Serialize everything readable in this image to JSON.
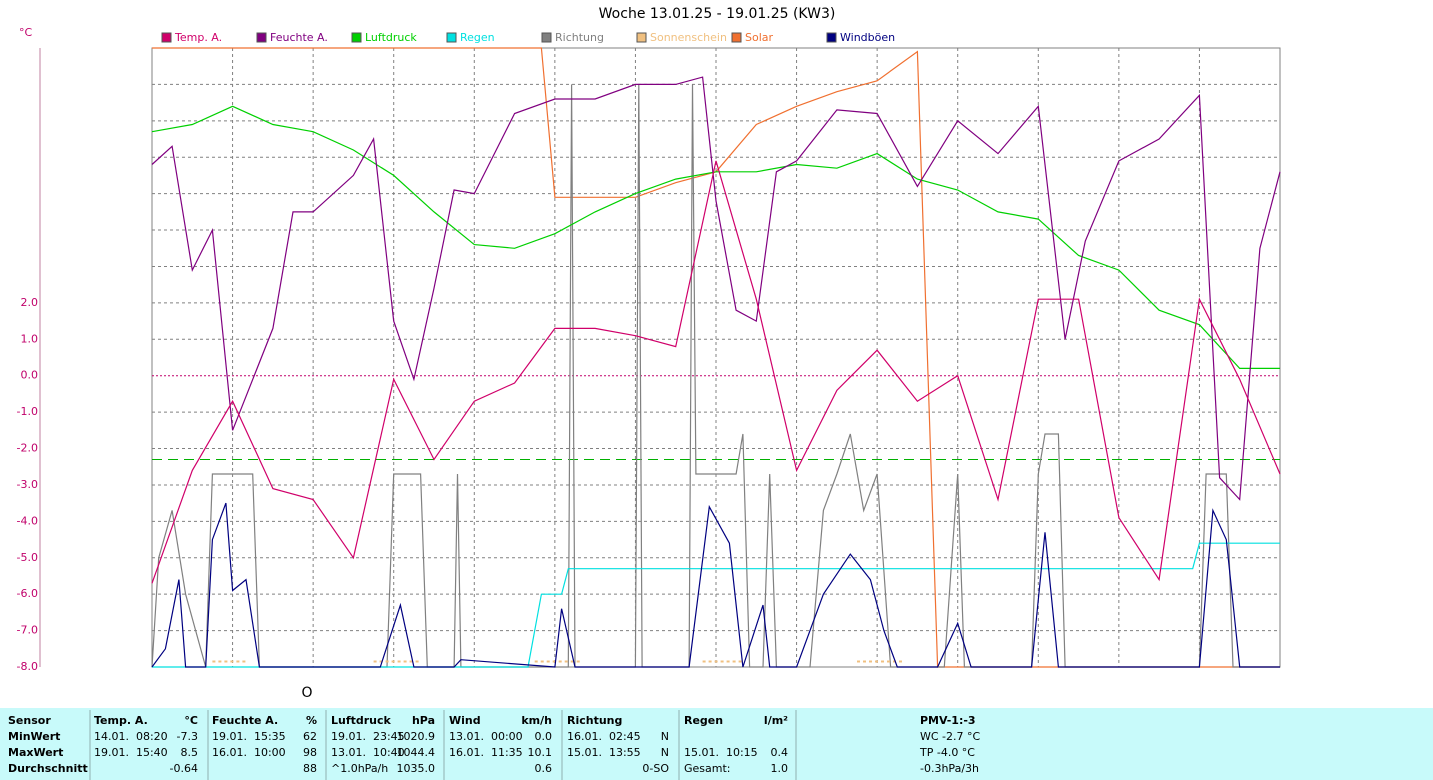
{
  "chart_data": {
    "type": "line",
    "title": "Woche 13.01.25 - 19.01.25 (KW3)",
    "y_unit": "°C",
    "marker_text": "O",
    "xlim": [
      0,
      168
    ],
    "ylim": [
      -8,
      9
    ],
    "xticks": [
      {
        "value": 12,
        "label": null
      },
      {
        "value": 24,
        "label": null
      },
      {
        "value": 36,
        "label": null
      },
      {
        "value": 48,
        "label": null
      },
      {
        "value": 60,
        "label": null
      },
      {
        "value": 72,
        "label": null
      },
      {
        "value": 84,
        "label": null
      },
      {
        "value": 96,
        "label": null
      },
      {
        "value": 108,
        "label": null
      },
      {
        "value": 120,
        "label": null
      },
      {
        "value": 132,
        "label": null
      },
      {
        "value": 144,
        "label": null
      },
      {
        "value": 156,
        "label": null
      }
    ],
    "yticks": [
      {
        "value": -8,
        "label": "-8.0"
      },
      {
        "value": -7,
        "label": "-7.0"
      },
      {
        "value": -6,
        "label": "-6.0"
      },
      {
        "value": -5,
        "label": "-5.0"
      },
      {
        "value": -4,
        "label": "-4.0"
      },
      {
        "value": -3,
        "label": "-3.0"
      },
      {
        "value": -2,
        "label": "-2.0"
      },
      {
        "value": -1,
        "label": "-1.0"
      },
      {
        "value": 0,
        "label": "0.0"
      },
      {
        "value": 1,
        "label": "1.0"
      },
      {
        "value": 2,
        "label": "2.0"
      },
      {
        "value": 3,
        "label": null
      },
      {
        "value": 4,
        "label": null
      },
      {
        "value": 5,
        "label": null
      },
      {
        "value": 6,
        "label": null
      },
      {
        "value": 7,
        "label": null
      },
      {
        "value": 8,
        "label": null
      }
    ],
    "grid": true,
    "zero_line_color": "#c0006a",
    "axis_label_color": "#c0006a",
    "reference_line": {
      "value": -2.3,
      "color": "#00b000"
    },
    "series": [
      {
        "name": "Temp. A.",
        "color": "#d0006a",
        "x": [
          0,
          6,
          12,
          18,
          24,
          30,
          36,
          42,
          48,
          54,
          60,
          66,
          72,
          78,
          84,
          90,
          96,
          102,
          108,
          114,
          120,
          126,
          132,
          138,
          144,
          150,
          156,
          162,
          168
        ],
        "values": [
          -5.7,
          -2.6,
          -0.7,
          -3.1,
          -3.4,
          -5.0,
          -0.1,
          -2.3,
          -0.7,
          -0.2,
          1.3,
          1.3,
          1.1,
          0.8,
          5.9,
          2.1,
          -2.6,
          -0.4,
          0.7,
          -0.7,
          0.0,
          -3.4,
          2.1,
          2.1,
          -3.9,
          -5.6,
          2.1,
          -0.1,
          -2.7
        ]
      },
      {
        "name": "Feuchte A.",
        "color": "#800080",
        "x": [
          0,
          3,
          6,
          9,
          12,
          18,
          21,
          24,
          30,
          33,
          36,
          39,
          42,
          45,
          48,
          54,
          60,
          66,
          72,
          78,
          82,
          84,
          87,
          90,
          93,
          96,
          102,
          108,
          114,
          120,
          126,
          132,
          136,
          139,
          144,
          150,
          156,
          159,
          162,
          165,
          168
        ],
        "values": [
          5.8,
          6.3,
          2.9,
          4.0,
          -1.5,
          1.3,
          4.5,
          4.5,
          5.5,
          6.5,
          1.5,
          -0.1,
          2.4,
          5.1,
          5.0,
          7.2,
          7.6,
          7.6,
          8.0,
          8.0,
          8.2,
          4.8,
          1.8,
          1.5,
          5.6,
          5.9,
          7.3,
          7.2,
          5.2,
          7.0,
          6.1,
          7.4,
          1.0,
          3.7,
          5.9,
          6.5,
          7.7,
          -2.8,
          -3.4,
          3.5,
          5.6
        ]
      },
      {
        "name": "Luftdruck",
        "color": "#00d000",
        "x": [
          0,
          6,
          12,
          18,
          24,
          30,
          36,
          42,
          48,
          54,
          60,
          66,
          72,
          78,
          84,
          90,
          96,
          102,
          108,
          114,
          120,
          126,
          132,
          138,
          144,
          150,
          156,
          162,
          168
        ],
        "values": [
          6.7,
          6.9,
          7.4,
          6.9,
          6.7,
          6.2,
          5.5,
          4.5,
          3.6,
          3.5,
          3.9,
          4.5,
          5.0,
          5.4,
          5.6,
          5.6,
          5.8,
          5.7,
          6.1,
          5.4,
          5.1,
          4.5,
          4.3,
          3.3,
          2.9,
          1.8,
          1.4,
          0.2,
          0.2
        ]
      },
      {
        "name": "Regen",
        "color": "#00e0e0",
        "x": [
          0,
          56,
          58,
          61,
          62,
          155,
          156,
          168
        ],
        "values": [
          -8,
          -8,
          -6,
          -6,
          -5.3,
          -5.3,
          -4.6,
          -4.6
        ]
      },
      {
        "name": "Richtung",
        "color": "#808080",
        "x": [
          0,
          1,
          3,
          5,
          8,
          9,
          15,
          16,
          35,
          36,
          40,
          41,
          45,
          45.5,
          46,
          62,
          62.5,
          63,
          72,
          72.5,
          73,
          80,
          80.5,
          81,
          87,
          88,
          89,
          91,
          92,
          93,
          98,
          100,
          102,
          104,
          106,
          108,
          110,
          118,
          120,
          121,
          131,
          132,
          133,
          135,
          136,
          156,
          157,
          160,
          161,
          168
        ],
        "values": [
          -8,
          -5.0,
          -3.7,
          -6.0,
          -8,
          -2.7,
          -2.7,
          -8,
          -8,
          -2.7,
          -2.7,
          -8,
          -8,
          -2.7,
          -8,
          -8,
          8.0,
          -8,
          -8,
          8.0,
          -8,
          -8,
          8.0,
          -2.7,
          -2.7,
          -1.6,
          -8,
          -8,
          -2.7,
          -8,
          -8,
          -3.7,
          -2.7,
          -1.6,
          -3.7,
          -2.7,
          -8,
          -8,
          -2.7,
          -8,
          -8,
          -2.7,
          -1.6,
          -1.6,
          -8,
          -8,
          -2.7,
          -2.7,
          -8,
          -8
        ]
      },
      {
        "name": "Sonnenschein",
        "color": "#f0c080",
        "dashed": true,
        "x": [
          9,
          14,
          14.5,
          33,
          40,
          40.5,
          57,
          64,
          64.5,
          82,
          88,
          88.5,
          105,
          112
        ],
        "values": [
          -7.85,
          -7.85,
          null,
          -7.85,
          -7.85,
          null,
          -7.85,
          -7.85,
          null,
          -7.85,
          -7.85,
          null,
          -7.85,
          -7.85
        ]
      },
      {
        "name": "Solar",
        "color": "#f07030",
        "x": [
          0,
          58,
          60,
          66,
          72,
          78,
          84,
          90,
          96,
          102,
          108,
          114,
          117,
          168
        ],
        "values": [
          9.0,
          9.0,
          4.9,
          4.9,
          4.9,
          5.3,
          5.6,
          6.9,
          7.4,
          7.8,
          8.1,
          8.9,
          -8,
          -8
        ]
      },
      {
        "name": "Windböen",
        "color": "#000080",
        "x": [
          0,
          2,
          4,
          5,
          8,
          9,
          11,
          12,
          14,
          16,
          34,
          37,
          39,
          45,
          46,
          60,
          61,
          63,
          80,
          83,
          86,
          88,
          91,
          92,
          96,
          100,
          104,
          107,
          109,
          111,
          117,
          120,
          122,
          131,
          133,
          135,
          156,
          158,
          160,
          162,
          168
        ],
        "values": [
          -8,
          -7.5,
          -5.6,
          -8,
          -8,
          -4.5,
          -3.5,
          -5.9,
          -5.6,
          -8,
          -8,
          -6.3,
          -8,
          -8,
          -7.8,
          -8,
          -6.4,
          -8,
          -8,
          -3.6,
          -4.6,
          -8,
          -6.3,
          -8,
          -8,
          -6.0,
          -4.9,
          -5.6,
          -7.0,
          -8,
          -8,
          -6.8,
          -8,
          -8,
          -4.3,
          -8,
          -8,
          -3.7,
          -4.5,
          -8,
          -8
        ]
      }
    ]
  },
  "table": {
    "header": [
      "Sensor",
      "Temp. A.",
      "°C",
      "Feuchte A.",
      "%",
      "Luftdruck",
      "hPa",
      "Wind",
      "km/h",
      "Richtung",
      null,
      "Regen",
      "l/m²",
      "PMV-1:-3"
    ],
    "rows": [
      [
        "MinWert",
        "14.01.  08:20",
        "-7.3",
        "19.01.  15:35",
        "62",
        "19.01.  23:45",
        "1020.9",
        "13.01.  00:00",
        "0.0",
        "16.01.  02:45",
        "N",
        null,
        null,
        "WC -2.7 °C"
      ],
      [
        "MaxWert",
        "19.01.  15:40",
        "8.5",
        "16.01.  10:00",
        "98",
        "13.01.  10:40",
        "1044.4",
        "16.01.  11:35",
        "10.1",
        "15.01.  13:55",
        "N",
        "15.01.  10:15",
        "0.4",
        "TP -4.0 °C"
      ],
      [
        "Durchschnitt",
        null,
        "-0.64",
        null,
        "88",
        "^1.0hPa/h",
        "1035.0",
        null,
        "0.6",
        null,
        "0-SO",
        "Gesamt:",
        "1.0",
        "-0.3hPa/3h"
      ]
    ]
  }
}
